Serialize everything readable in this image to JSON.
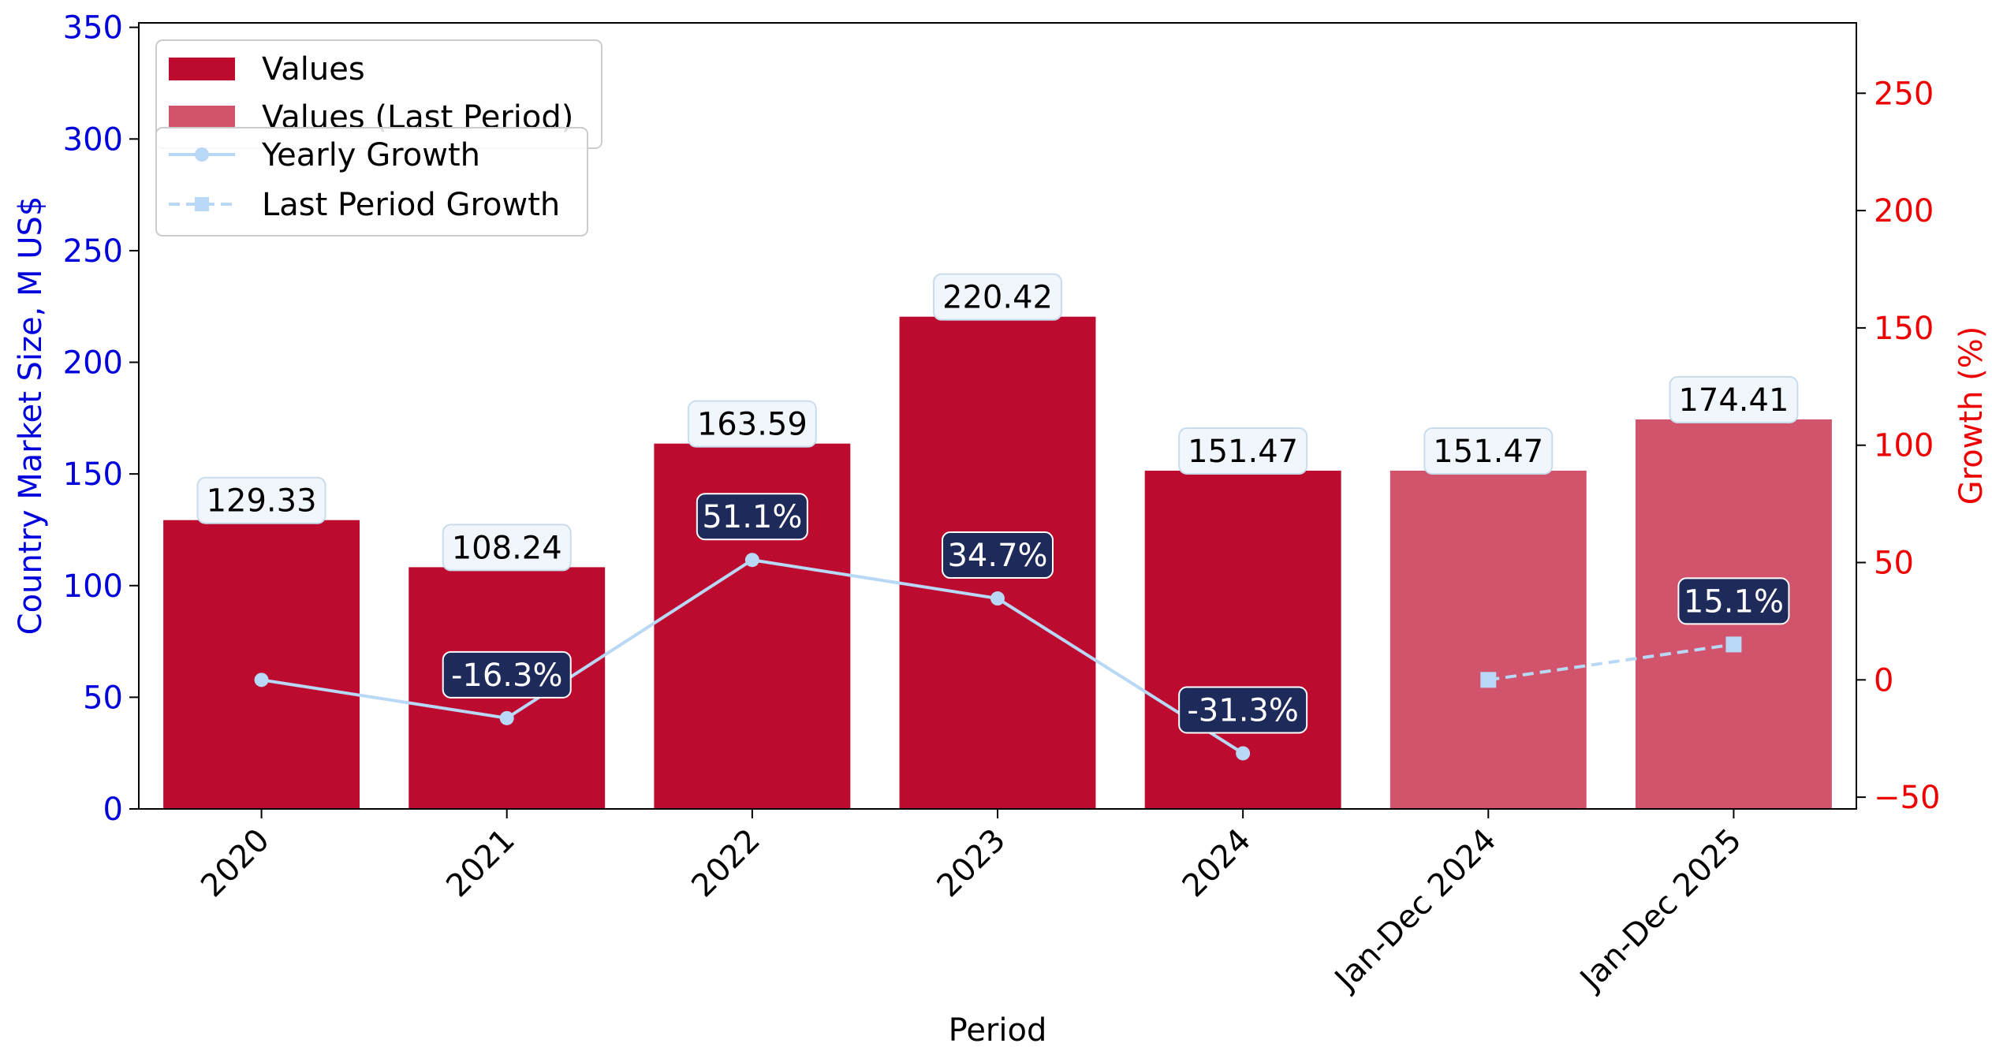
{
  "chart_data": {
    "type": "bar",
    "categories": [
      "2020",
      "2021",
      "2022",
      "2023",
      "2024",
      "Jan-Dec 2024",
      "Jan-Dec 2025"
    ],
    "series": [
      {
        "name": "Values",
        "values": [
          129.33,
          108.24,
          163.59,
          220.42,
          151.47,
          null,
          null
        ],
        "value_labels": [
          "129.33",
          "108.24",
          "163.59",
          "220.42",
          "151.47",
          null,
          null
        ]
      },
      {
        "name": "Values (Last Period)",
        "values": [
          null,
          null,
          null,
          null,
          null,
          151.47,
          174.41
        ],
        "value_labels": [
          null,
          null,
          null,
          null,
          null,
          "151.47",
          "174.41"
        ]
      },
      {
        "name": "Yearly Growth",
        "axis": "right",
        "values": [
          0,
          -16.3,
          51.1,
          34.7,
          -31.3,
          null,
          null
        ],
        "value_labels": [
          null,
          "-16.3%",
          "51.1%",
          "34.7%",
          "-31.3%",
          null,
          null
        ]
      },
      {
        "name": "Last Period Growth",
        "axis": "right",
        "values": [
          null,
          null,
          null,
          null,
          null,
          0,
          15.1
        ],
        "value_labels": [
          null,
          null,
          null,
          null,
          null,
          null,
          "15.1%"
        ]
      }
    ],
    "xlabel": "Period",
    "ylabel": "Country Market Size, M US$",
    "y2label": "Growth (%)",
    "ylim": [
      0,
      352
    ],
    "y2lim": [
      -55,
      280
    ],
    "yticks": [
      "0",
      "50",
      "100",
      "150",
      "200",
      "250",
      "300",
      "350"
    ],
    "y2ticks": [
      "−50",
      "0",
      "50",
      "100",
      "150",
      "200",
      "250"
    ],
    "grid": false,
    "legend_placement": "top-left",
    "colors": {
      "values": "#bd0b30",
      "last_period": "#d1546c",
      "growth_line": "#b8d8f5",
      "growth_label_bg": "#1e2a5a",
      "value_label_bg": "#f0f6fb",
      "left_axis": "#0000dd",
      "right_axis": "#ee0000"
    }
  }
}
